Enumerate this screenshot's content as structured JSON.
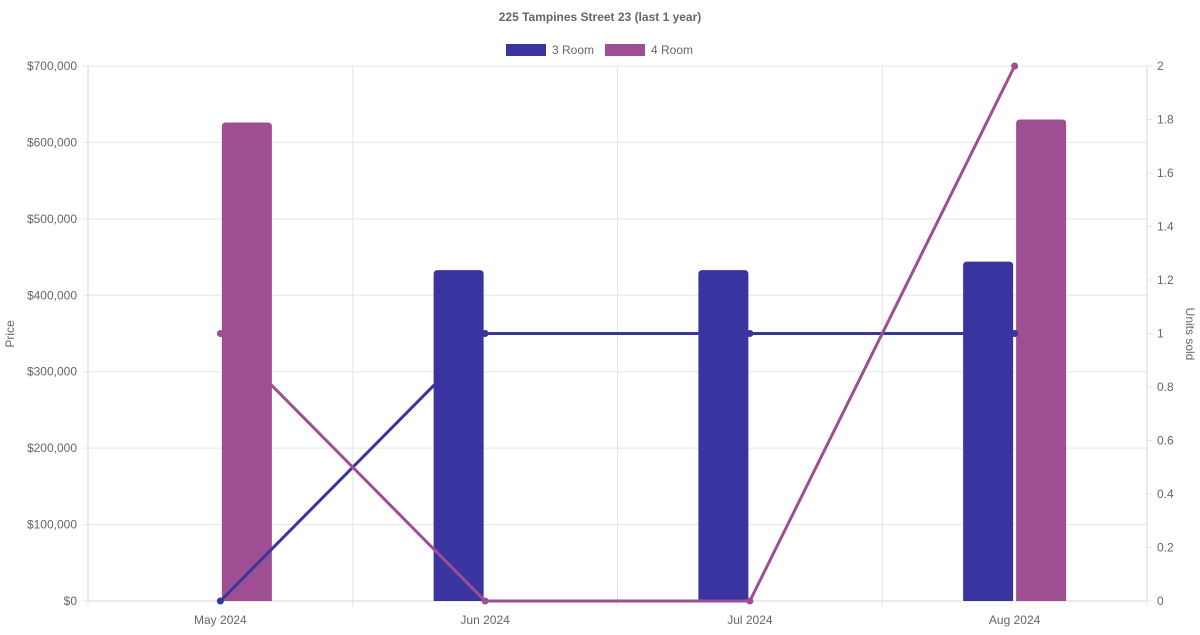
{
  "chart_data": {
    "type": "bar",
    "title": "225 Tampines Street 23 (last 1 year)",
    "categories": [
      "May 2024",
      "Jun 2024",
      "Jul 2024",
      "Aug 2024"
    ],
    "left_axis": {
      "label": "Price",
      "min": 0,
      "max": 700000,
      "step": 100000,
      "ticks": [
        "$0",
        "$100,000",
        "$200,000",
        "$300,000",
        "$400,000",
        "$500,000",
        "$600,000",
        "$700,000"
      ]
    },
    "right_axis": {
      "label": "Units sold",
      "min": 0,
      "max": 2,
      "step": 0.2,
      "ticks": [
        "0",
        "0.2",
        "0.4",
        "0.6",
        "0.8",
        "1",
        "1.2",
        "1.4",
        "1.6",
        "1.8",
        "2"
      ]
    },
    "grid": true,
    "legend_position": "top",
    "series": [
      {
        "name": "3 Room",
        "color": "#3a34a0",
        "price": [
          null,
          433000,
          433000,
          444000
        ],
        "units": [
          0,
          1,
          1,
          1
        ]
      },
      {
        "name": "4 Room",
        "color": "#9e4f93",
        "price": [
          626000,
          null,
          null,
          630000
        ],
        "units": [
          1,
          0,
          0,
          2
        ]
      }
    ]
  }
}
